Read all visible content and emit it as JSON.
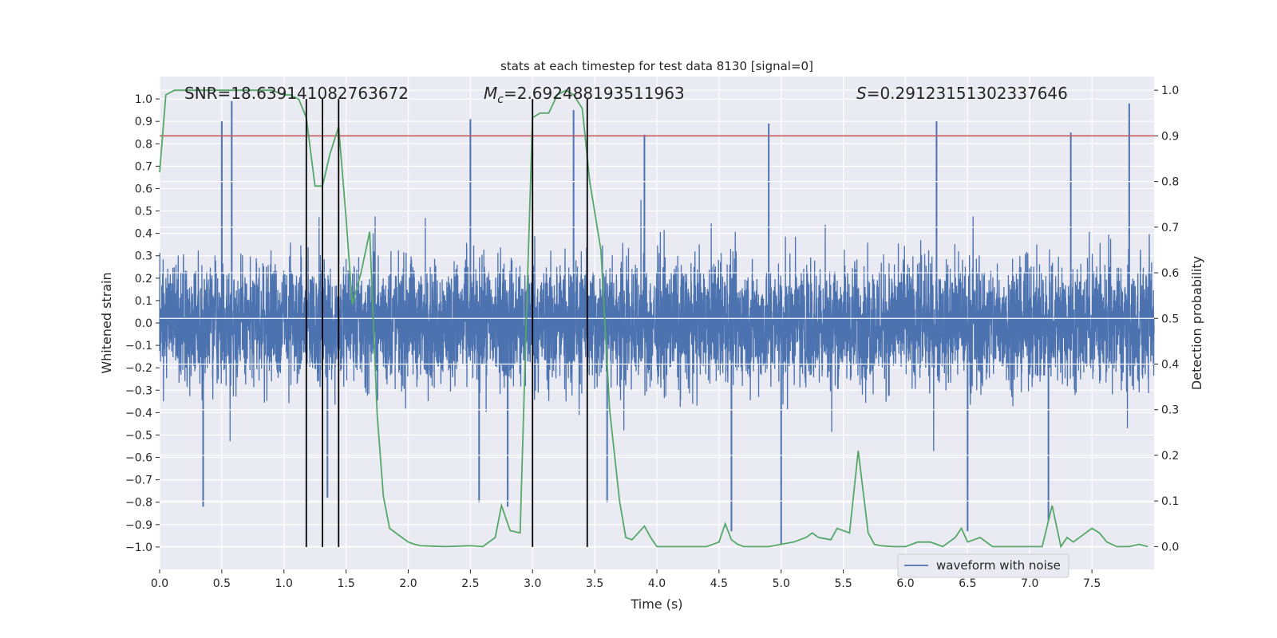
{
  "chart_data": {
    "type": "line",
    "title": "stats at each timestep for test data 8130 [signal=0]",
    "xlabel": "Time (s)",
    "ylabel_left": "Whitened strain",
    "ylabel_right": "Detection probability",
    "xlim": [
      0.0,
      8.0
    ],
    "ylim_left": [
      -1.1,
      1.1
    ],
    "ylim_right": [
      -0.05,
      1.03
    ],
    "x_ticks": [
      "0.0",
      "0.5",
      "1.0",
      "1.5",
      "2.0",
      "2.5",
      "3.0",
      "3.5",
      "4.0",
      "4.5",
      "5.0",
      "5.5",
      "6.0",
      "6.5",
      "7.0",
      "7.5"
    ],
    "y_ticks_left": [
      "1.0",
      "0.9",
      "0.8",
      "0.7",
      "0.6",
      "0.5",
      "0.4",
      "0.3",
      "0.2",
      "0.1",
      "0.0",
      "−0.1",
      "−0.2",
      "−0.3",
      "−0.4",
      "−0.5",
      "−0.6",
      "−0.7",
      "−0.8",
      "−0.9",
      "−1.0"
    ],
    "y_ticks_right": [
      "1.0",
      "0.9",
      "0.8",
      "0.7",
      "0.6",
      "0.5",
      "0.4",
      "0.3",
      "0.2",
      "0.1",
      "0.0"
    ],
    "annotations": {
      "snr": "SNR=18.639141082763672",
      "mc_prefix": "M",
      "mc_sub": "c",
      "mc_value": "=2.692488193511963",
      "s_prefix": "S",
      "s_value": "=0.29123151302337646"
    },
    "threshold_right": 0.9,
    "event_lines_x": [
      1.18,
      1.31,
      1.44,
      3.0,
      3.44
    ],
    "event_lines_y_range": [
      -1.0,
      1.0
    ],
    "colors": {
      "waveform": "#4c72b0",
      "probability": "#55a868",
      "threshold": "#c44e52",
      "events": "#000000",
      "panel_bg": "#eaeaf2",
      "grid": "#ffffff"
    },
    "waveform": {
      "name": "waveform with noise",
      "duration_s": 8.0,
      "noise_amplitude": 0.38,
      "peaks": [
        {
          "x": 0.58,
          "y": 0.99
        },
        {
          "x": 0.5,
          "y": 0.9
        },
        {
          "x": 2.5,
          "y": 0.91
        },
        {
          "x": 3.33,
          "y": 0.95
        },
        {
          "x": 7.8,
          "y": 0.98
        },
        {
          "x": 4.9,
          "y": 0.89
        },
        {
          "x": 6.25,
          "y": 0.9
        },
        {
          "x": 7.33,
          "y": 0.85
        },
        {
          "x": 3.9,
          "y": 0.84
        },
        {
          "x": 5.0,
          "y": -0.99
        },
        {
          "x": 0.35,
          "y": -0.82
        },
        {
          "x": 2.8,
          "y": -0.82
        },
        {
          "x": 1.35,
          "y": -0.78
        },
        {
          "x": 4.6,
          "y": -0.93
        },
        {
          "x": 6.5,
          "y": -0.93
        },
        {
          "x": 7.15,
          "y": -0.88
        },
        {
          "x": 2.57,
          "y": -0.8
        },
        {
          "x": 3.6,
          "y": -0.8
        }
      ]
    },
    "probability": {
      "name": "detection probability",
      "x": [
        0.0,
        0.05,
        0.12,
        0.2,
        0.3,
        0.4,
        0.5,
        0.6,
        0.7,
        0.8,
        0.9,
        1.0,
        1.05,
        1.12,
        1.18,
        1.25,
        1.31,
        1.37,
        1.44,
        1.5,
        1.55,
        1.62,
        1.69,
        1.75,
        1.8,
        1.85,
        1.9,
        2.0,
        2.05,
        2.1,
        2.2,
        2.3,
        2.4,
        2.5,
        2.6,
        2.7,
        2.75,
        2.82,
        2.9,
        2.95,
        3.0,
        3.06,
        3.13,
        3.2,
        3.27,
        3.33,
        3.4,
        3.46,
        3.55,
        3.62,
        3.7,
        3.75,
        3.8,
        3.9,
        3.95,
        4.0,
        4.1,
        4.2,
        4.3,
        4.4,
        4.5,
        4.55,
        4.6,
        4.65,
        4.7,
        4.8,
        4.9,
        5.0,
        5.1,
        5.2,
        5.25,
        5.3,
        5.4,
        5.45,
        5.55,
        5.62,
        5.7,
        5.75,
        5.8,
        5.85,
        5.9,
        6.0,
        6.1,
        6.2,
        6.25,
        6.3,
        6.4,
        6.45,
        6.5,
        6.6,
        6.7,
        6.8,
        6.9,
        7.0,
        7.1,
        7.18,
        7.25,
        7.3,
        7.35,
        7.4,
        7.5,
        7.56,
        7.62,
        7.7,
        7.8,
        7.88,
        7.95
      ],
      "y": [
        0.82,
        0.99,
        1.0,
        1.0,
        1.0,
        1.0,
        1.0,
        1.0,
        1.0,
        1.0,
        1.0,
        0.99,
        0.99,
        0.98,
        0.94,
        0.79,
        0.79,
        0.86,
        0.92,
        0.72,
        0.53,
        0.6,
        0.69,
        0.29,
        0.11,
        0.04,
        0.03,
        0.01,
        0.005,
        0.002,
        0.001,
        0.0,
        0.001,
        0.002,
        0.0,
        0.02,
        0.09,
        0.035,
        0.03,
        0.5,
        0.94,
        0.95,
        0.95,
        0.99,
        1.0,
        0.99,
        0.96,
        0.8,
        0.65,
        0.3,
        0.1,
        0.02,
        0.015,
        0.045,
        0.02,
        0.0,
        0.0,
        0.0,
        0.0,
        0.0,
        0.01,
        0.05,
        0.015,
        0.005,
        0.0,
        0.0,
        0.0,
        0.005,
        0.01,
        0.02,
        0.03,
        0.02,
        0.015,
        0.04,
        0.03,
        0.21,
        0.03,
        0.005,
        0.002,
        0.001,
        0.0,
        0.0,
        0.01,
        0.01,
        0.005,
        0.0,
        0.02,
        0.04,
        0.01,
        0.02,
        0.0,
        0.0,
        0.0,
        0.0,
        0.0,
        0.09,
        0.0,
        0.02,
        0.01,
        0.02,
        0.04,
        0.03,
        0.01,
        0.0,
        0.0,
        0.005,
        0.0
      ]
    },
    "legend": {
      "entry": "waveform with noise",
      "location": "lower right"
    }
  }
}
